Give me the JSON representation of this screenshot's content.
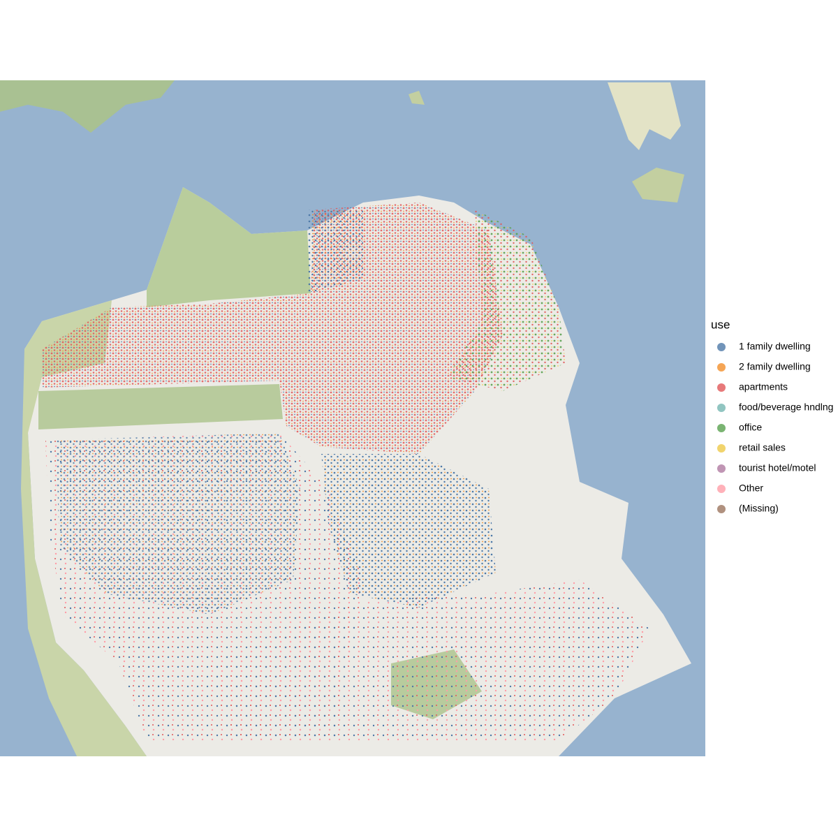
{
  "map": {
    "legend": {
      "title": "use",
      "entries": [
        {
          "label": "1 family dwelling",
          "color": "#4e79a7"
        },
        {
          "label": "2 family dwelling",
          "color": "#f28e2b"
        },
        {
          "label": "apartments",
          "color": "#e15759"
        },
        {
          "label": "food/beverage hndlng",
          "color": "#76b7b2"
        },
        {
          "label": "office",
          "color": "#59a14f"
        },
        {
          "label": "retail sales",
          "color": "#edc948"
        },
        {
          "label": "tourist hotel/motel",
          "color": "#b07aa1"
        },
        {
          "label": "Other",
          "color": "#ff9da7"
        },
        {
          "label": "(Missing)",
          "color": "#9c755f"
        }
      ]
    }
  }
}
